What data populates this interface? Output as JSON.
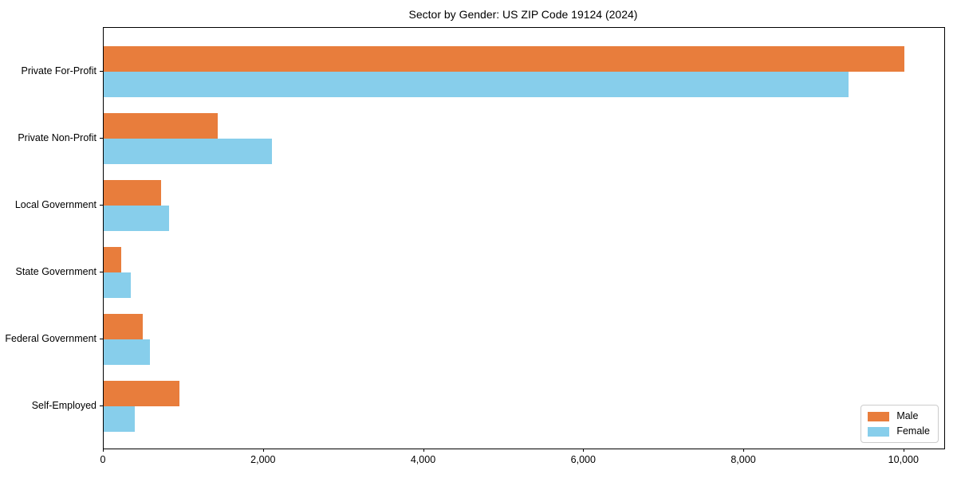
{
  "chart_data": {
    "type": "bar",
    "orientation": "horizontal",
    "title": "Sector by Gender: US ZIP Code 19124 (2024)",
    "categories": [
      "Private For-Profit",
      "Private Non-Profit",
      "Local Government",
      "State Government",
      "Federal Government",
      "Self-Employed"
    ],
    "series": [
      {
        "name": "Male",
        "color": "#e87d3c",
        "values": [
          10000,
          1420,
          720,
          215,
          485,
          950
        ]
      },
      {
        "name": "Female",
        "color": "#87ceeb",
        "values": [
          9300,
          2100,
          820,
          340,
          580,
          390
        ]
      }
    ],
    "xlabel": "",
    "ylabel": "",
    "xlim": [
      0,
      10500
    ],
    "xticks": [
      0,
      2000,
      4000,
      6000,
      8000,
      10000
    ],
    "xtick_labels": [
      "0",
      "2,000",
      "4,000",
      "6,000",
      "8,000",
      "10,000"
    ],
    "legend": {
      "position": "lower-right",
      "entries": [
        "Male",
        "Female"
      ]
    },
    "grid": false,
    "spine_color": "#000000",
    "background_color": "#ffffff"
  }
}
